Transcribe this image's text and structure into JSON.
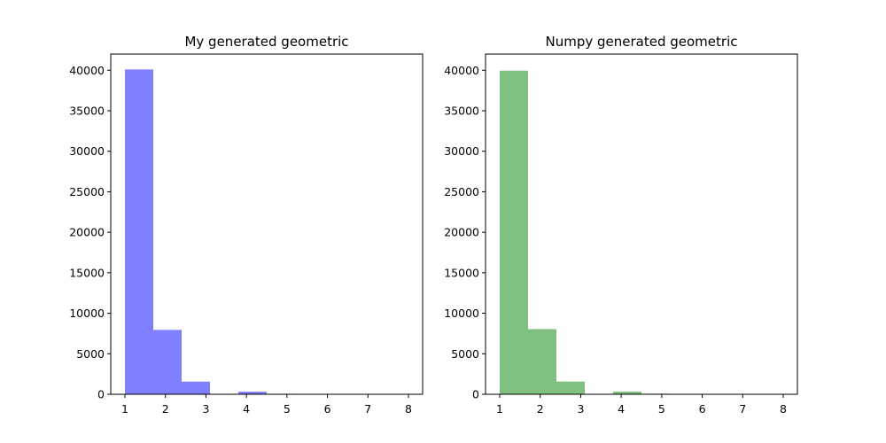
{
  "chart_data": [
    {
      "type": "bar",
      "title": "My generated geometric",
      "xlabel": "",
      "ylabel": "",
      "xlim": [
        0.65,
        8.35
      ],
      "ylim": [
        0,
        42000
      ],
      "xticks": [
        1,
        2,
        3,
        4,
        5,
        6,
        7,
        8
      ],
      "yticks": [
        0,
        5000,
        10000,
        15000,
        20000,
        25000,
        30000,
        35000,
        40000
      ],
      "grid": false,
      "color": "#8080ff",
      "bins": [
        1,
        1.7,
        2.4,
        3.1,
        3.8,
        4.5,
        5.2,
        5.9,
        6.6,
        7.3,
        8.0
      ],
      "counts": [
        40100,
        7950,
        1560,
        0,
        320,
        60,
        12,
        3,
        1,
        1
      ]
    },
    {
      "type": "bar",
      "title": "Numpy generated geometric",
      "xlabel": "",
      "ylabel": "",
      "xlim": [
        0.65,
        8.35
      ],
      "ylim": [
        0,
        42000
      ],
      "xticks": [
        1,
        2,
        3,
        4,
        5,
        6,
        7,
        8
      ],
      "yticks": [
        0,
        5000,
        10000,
        15000,
        20000,
        25000,
        30000,
        35000,
        40000
      ],
      "grid": false,
      "color": "#80c080",
      "bins": [
        1,
        1.7,
        2.4,
        3.1,
        3.8,
        4.5,
        5.2,
        5.9,
        6.6,
        7.3,
        8.0
      ],
      "counts": [
        39950,
        8050,
        1570,
        0,
        330,
        70,
        15,
        4,
        1,
        1
      ]
    }
  ]
}
